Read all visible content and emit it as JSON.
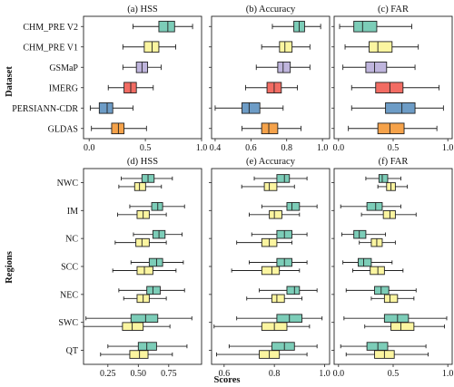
{
  "figure": {
    "xlabel": "Scores",
    "top_ylabel": "Dataset",
    "bottom_ylabel": "Regions"
  },
  "chart_data": [
    {
      "type": "boxplot",
      "title": "(a) HSS",
      "xlim": [
        -0.05,
        1.0
      ],
      "xticks": [
        0.0,
        0.5,
        1.0
      ],
      "xtick_labels": [
        "0.0",
        "0.5",
        "1.0"
      ],
      "categories": [
        "CHM_PRE V2",
        "CHM_PRE V1",
        "GSMaP",
        "IMERG",
        "PERSIANN-CDR",
        "GLDAS"
      ],
      "boxes": [
        {
          "whislo": 0.39,
          "q1": 0.62,
          "med": 0.7,
          "q3": 0.76,
          "whishi": 0.92
        },
        {
          "whislo": 0.3,
          "q1": 0.49,
          "med": 0.56,
          "q3": 0.62,
          "whishi": 0.77
        },
        {
          "whislo": 0.3,
          "q1": 0.42,
          "med": 0.47,
          "q3": 0.52,
          "whishi": 0.64
        },
        {
          "whislo": 0.17,
          "q1": 0.31,
          "med": 0.37,
          "q3": 0.42,
          "whishi": 0.57
        },
        {
          "whislo": 0.01,
          "q1": 0.09,
          "med": 0.16,
          "q3": 0.21,
          "whishi": 0.39
        },
        {
          "whislo": 0.02,
          "q1": 0.2,
          "med": 0.26,
          "q3": 0.31,
          "whishi": 0.51
        }
      ]
    },
    {
      "type": "boxplot",
      "title": "(b) Accuracy",
      "xlim": [
        0.38,
        1.04
      ],
      "xticks": [
        0.4,
        0.6,
        0.8,
        1.0
      ],
      "xtick_labels": [
        "0.4",
        "0.6",
        "0.8",
        "1.0"
      ],
      "categories": [
        "CHM_PRE V2",
        "CHM_PRE V1",
        "GSMaP",
        "IMERG",
        "PERSIANN-CDR",
        "GLDAS"
      ],
      "boxes": [
        {
          "whislo": 0.72,
          "q1": 0.84,
          "med": 0.87,
          "q3": 0.9,
          "whishi": 0.99
        },
        {
          "whislo": 0.66,
          "q1": 0.76,
          "med": 0.79,
          "q3": 0.83,
          "whishi": 0.93
        },
        {
          "whislo": 0.63,
          "q1": 0.75,
          "med": 0.78,
          "q3": 0.82,
          "whishi": 0.93
        },
        {
          "whislo": 0.57,
          "q1": 0.69,
          "med": 0.73,
          "q3": 0.77,
          "whishi": 0.86
        },
        {
          "whislo": 0.4,
          "q1": 0.55,
          "med": 0.59,
          "q3": 0.65,
          "whishi": 0.78
        },
        {
          "whislo": 0.55,
          "q1": 0.66,
          "med": 0.7,
          "q3": 0.75,
          "whishi": 0.88
        }
      ]
    },
    {
      "type": "boxplot",
      "title": "(c) FAR",
      "xlim": [
        -0.04,
        1.04
      ],
      "xticks": [
        0.0,
        0.5,
        1.0
      ],
      "xtick_labels": [
        "0.0",
        "0.5",
        "1.0"
      ],
      "categories": [
        "CHM_PRE V2",
        "CHM_PRE V1",
        "GSMaP",
        "IMERG",
        "PERSIANN-CDR",
        "GLDAS"
      ],
      "boxes": [
        {
          "whislo": 0.01,
          "q1": 0.14,
          "med": 0.22,
          "q3": 0.35,
          "whishi": 0.67
        },
        {
          "whislo": 0.06,
          "q1": 0.28,
          "med": 0.36,
          "q3": 0.49,
          "whishi": 0.73
        },
        {
          "whislo": 0.04,
          "q1": 0.25,
          "med": 0.33,
          "q3": 0.44,
          "whishi": 0.7
        },
        {
          "whislo": 0.12,
          "q1": 0.34,
          "med": 0.47,
          "q3": 0.59,
          "whishi": 0.92
        },
        {
          "whislo": 0.12,
          "q1": 0.43,
          "med": 0.58,
          "q3": 0.7,
          "whishi": 0.96
        },
        {
          "whislo": 0.09,
          "q1": 0.36,
          "med": 0.47,
          "q3": 0.6,
          "whishi": 0.9
        }
      ]
    },
    {
      "type": "boxplot",
      "title": "(d) HSS",
      "xlim": [
        0.05,
        1.02
      ],
      "xticks": [
        0.25,
        0.5,
        0.75
      ],
      "xtick_labels": [
        "0.25",
        "0.50",
        "0.75"
      ],
      "categories": [
        "NWC",
        "IM",
        "NC",
        "SCC",
        "NEC",
        "SWC",
        "QT"
      ],
      "series": [
        "CHM_PRE V2",
        "CHM_PRE V1"
      ],
      "boxes": [
        [
          {
            "whislo": 0.36,
            "q1": 0.53,
            "med": 0.58,
            "q3": 0.63,
            "whishi": 0.78
          },
          {
            "whislo": 0.34,
            "q1": 0.47,
            "med": 0.51,
            "q3": 0.56,
            "whishi": 0.69
          }
        ],
        [
          {
            "whislo": 0.43,
            "q1": 0.61,
            "med": 0.66,
            "q3": 0.7,
            "whishi": 0.88
          },
          {
            "whislo": 0.33,
            "q1": 0.49,
            "med": 0.54,
            "q3": 0.59,
            "whishi": 0.73
          }
        ],
        [
          {
            "whislo": 0.46,
            "q1": 0.62,
            "med": 0.67,
            "q3": 0.72,
            "whishi": 0.86
          },
          {
            "whislo": 0.31,
            "q1": 0.48,
            "med": 0.53,
            "q3": 0.59,
            "whishi": 0.73
          }
        ],
        [
          {
            "whislo": 0.44,
            "q1": 0.59,
            "med": 0.65,
            "q3": 0.7,
            "whishi": 0.87
          },
          {
            "whislo": 0.29,
            "q1": 0.49,
            "med": 0.55,
            "q3": 0.62,
            "whishi": 0.81
          }
        ],
        [
          {
            "whislo": 0.34,
            "q1": 0.57,
            "med": 0.62,
            "q3": 0.68,
            "whishi": 0.88
          },
          {
            "whislo": 0.38,
            "q1": 0.49,
            "med": 0.54,
            "q3": 0.59,
            "whishi": 0.73
          }
        ],
        [
          {
            "whislo": 0.07,
            "q1": 0.44,
            "med": 0.56,
            "q3": 0.66,
            "whishi": 0.94
          },
          {
            "whislo": 0.05,
            "q1": 0.37,
            "med": 0.45,
            "q3": 0.54,
            "whishi": 0.76
          }
        ],
        [
          {
            "whislo": 0.25,
            "q1": 0.5,
            "med": 0.57,
            "q3": 0.65,
            "whishi": 0.9
          },
          {
            "whislo": 0.19,
            "q1": 0.43,
            "med": 0.51,
            "q3": 0.58,
            "whishi": 0.78
          }
        ]
      ]
    },
    {
      "type": "boxplot",
      "title": "(e) Accuracy",
      "xlim": [
        0.55,
        1.02
      ],
      "xticks": [
        0.6,
        0.8,
        1.0
      ],
      "xtick_labels": [
        "0.6",
        "0.8",
        "1.0"
      ],
      "categories": [
        "NWC",
        "IM",
        "NC",
        "SCC",
        "NEC",
        "SWC",
        "QT"
      ],
      "series": [
        "CHM_PRE V2",
        "CHM_PRE V1"
      ],
      "boxes": [
        [
          {
            "whislo": 0.72,
            "q1": 0.81,
            "med": 0.84,
            "q3": 0.86,
            "whishi": 0.93
          },
          {
            "whislo": 0.67,
            "q1": 0.76,
            "med": 0.78,
            "q3": 0.81,
            "whishi": 0.88
          }
        ],
        [
          {
            "whislo": 0.75,
            "q1": 0.85,
            "med": 0.87,
            "q3": 0.9,
            "whishi": 0.97
          },
          {
            "whislo": 0.7,
            "q1": 0.78,
            "med": 0.8,
            "q3": 0.83,
            "whishi": 0.9
          }
        ],
        [
          {
            "whislo": 0.71,
            "q1": 0.81,
            "med": 0.84,
            "q3": 0.87,
            "whishi": 0.93
          },
          {
            "whislo": 0.65,
            "q1": 0.75,
            "med": 0.78,
            "q3": 0.81,
            "whishi": 0.87
          }
        ],
        [
          {
            "whislo": 0.7,
            "q1": 0.81,
            "med": 0.84,
            "q3": 0.87,
            "whishi": 0.93
          },
          {
            "whislo": 0.63,
            "q1": 0.75,
            "med": 0.79,
            "q3": 0.82,
            "whishi": 0.9
          }
        ],
        [
          {
            "whislo": 0.74,
            "q1": 0.85,
            "med": 0.88,
            "q3": 0.9,
            "whishi": 0.97
          },
          {
            "whislo": 0.69,
            "q1": 0.79,
            "med": 0.81,
            "q3": 0.84,
            "whishi": 0.91
          }
        ],
        [
          {
            "whislo": 0.65,
            "q1": 0.81,
            "med": 0.86,
            "q3": 0.91,
            "whishi": 0.99
          },
          {
            "whislo": 0.56,
            "q1": 0.75,
            "med": 0.8,
            "q3": 0.85,
            "whishi": 0.94
          }
        ],
        [
          {
            "whislo": 0.62,
            "q1": 0.79,
            "med": 0.84,
            "q3": 0.88,
            "whishi": 0.97
          },
          {
            "whislo": 0.57,
            "q1": 0.74,
            "med": 0.78,
            "q3": 0.82,
            "whishi": 0.93
          }
        ]
      ]
    },
    {
      "type": "boxplot",
      "title": "(f) FAR",
      "xlim": [
        -0.04,
        1.04
      ],
      "xticks": [
        0.0,
        0.5,
        1.0
      ],
      "xtick_labels": [
        "0.0",
        "0.5",
        "1.0"
      ],
      "categories": [
        "NWC",
        "IM",
        "NC",
        "SCC",
        "NEC",
        "SWC",
        "QT"
      ],
      "series": [
        "CHM_PRE V2",
        "CHM_PRE V1"
      ],
      "boxes": [
        [
          {
            "whislo": 0.25,
            "q1": 0.37,
            "med": 0.4,
            "q3": 0.45,
            "whishi": 0.57
          },
          {
            "whislo": 0.36,
            "q1": 0.44,
            "med": 0.48,
            "q3": 0.52,
            "whishi": 0.63
          }
        ],
        [
          {
            "whislo": 0.02,
            "q1": 0.26,
            "med": 0.34,
            "q3": 0.4,
            "whishi": 0.57
          },
          {
            "whislo": 0.21,
            "q1": 0.41,
            "med": 0.47,
            "q3": 0.52,
            "whishi": 0.71
          }
        ],
        [
          {
            "whislo": 0.03,
            "q1": 0.14,
            "med": 0.19,
            "q3": 0.25,
            "whishi": 0.43
          },
          {
            "whislo": 0.19,
            "q1": 0.3,
            "med": 0.35,
            "q3": 0.4,
            "whishi": 0.52
          }
        ],
        [
          {
            "whislo": 0.04,
            "q1": 0.18,
            "med": 0.23,
            "q3": 0.3,
            "whishi": 0.49
          },
          {
            "whislo": 0.13,
            "q1": 0.29,
            "med": 0.36,
            "q3": 0.42,
            "whishi": 0.59
          }
        ],
        [
          {
            "whislo": 0.07,
            "q1": 0.33,
            "med": 0.39,
            "q3": 0.46,
            "whishi": 0.71
          },
          {
            "whislo": 0.3,
            "q1": 0.42,
            "med": 0.47,
            "q3": 0.54,
            "whishi": 0.69
          }
        ],
        [
          {
            "whislo": 0.05,
            "q1": 0.42,
            "med": 0.54,
            "q3": 0.64,
            "whishi": 0.99
          },
          {
            "whislo": 0.24,
            "q1": 0.48,
            "med": 0.57,
            "q3": 0.69,
            "whishi": 0.97
          }
        ],
        [
          {
            "whislo": 0.02,
            "q1": 0.26,
            "med": 0.36,
            "q3": 0.45,
            "whishi": 0.8
          },
          {
            "whislo": 0.07,
            "q1": 0.33,
            "med": 0.42,
            "q3": 0.51,
            "whishi": 0.82
          }
        ]
      ]
    }
  ],
  "colors": {
    "CHM_PRE V2": "#7ccdb8",
    "CHM_PRE V1": "#fbf5a0",
    "GSMaP": "#bfb5dd",
    "IMERG": "#f26c63",
    "PERSIANN-CDR": "#6d9cc6",
    "GLDAS": "#f5a24a",
    "V2_region": "#7ccdb8",
    "V1_region": "#fbf5a0",
    "line": "#222222"
  }
}
